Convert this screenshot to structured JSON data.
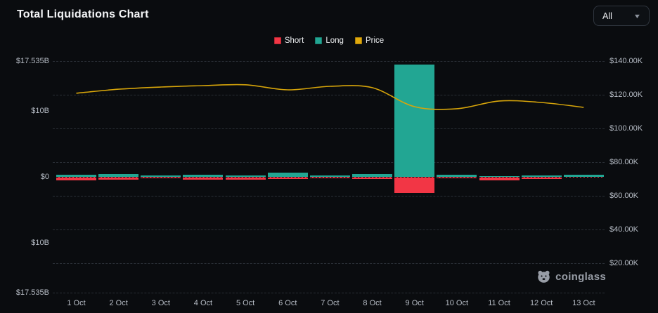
{
  "header": {
    "title": "Total Liquidations Chart",
    "range_selector": {
      "value": "All"
    }
  },
  "legend": [
    {
      "label": "Short",
      "color": "#f23645"
    },
    {
      "label": "Long",
      "color": "#22a693"
    },
    {
      "label": "Price",
      "color": "#e0a90c"
    }
  ],
  "watermark": {
    "label": "coinglass"
  },
  "chart_data": {
    "type": "bar",
    "subtype": "stacked-diverging bars with overlay line",
    "title": "Total Liquidations Chart",
    "categories": [
      "1 Oct",
      "2 Oct",
      "3 Oct",
      "4 Oct",
      "5 Oct",
      "6 Oct",
      "7 Oct",
      "8 Oct",
      "9 Oct",
      "10 Oct",
      "11 Oct",
      "12 Oct",
      "13 Oct"
    ],
    "series": [
      {
        "name": "Short",
        "type": "bar",
        "axis": "left",
        "direction": "down",
        "unit": "$B",
        "color": "#f23645",
        "values": [
          0.53,
          0.42,
          0.21,
          0.42,
          0.42,
          0.32,
          0.21,
          0.32,
          2.4,
          0.21,
          0.53,
          0.32,
          0.11
        ]
      },
      {
        "name": "Long",
        "type": "bar",
        "axis": "left",
        "direction": "up",
        "unit": "$B",
        "color": "#22a693",
        "values": [
          0.32,
          0.45,
          0.21,
          0.32,
          0.21,
          0.64,
          0.21,
          0.42,
          17.0,
          0.32,
          0.11,
          0.21,
          0.32
        ]
      },
      {
        "name": "Price",
        "type": "line",
        "axis": "right",
        "unit": "$K",
        "color": "#d7a50a",
        "values": [
          120.9,
          123.3,
          124.6,
          125.4,
          125.9,
          122.9,
          125.0,
          124.2,
          112.9,
          111.7,
          116.3,
          115.4,
          112.5
        ]
      }
    ],
    "axes": {
      "left": {
        "unit": "$B",
        "range": [
          -17.535,
          17.535
        ],
        "ticks": [
          {
            "value": 17.535,
            "label": "$17.535B"
          },
          {
            "value": 10,
            "label": "$10B"
          },
          {
            "value": 0,
            "label": "$0"
          },
          {
            "value": -10,
            "label": "$10B"
          },
          {
            "value": -17.535,
            "label": "$17.535B"
          }
        ]
      },
      "right": {
        "unit": "$K",
        "range": [
          20,
          140
        ],
        "ticks": [
          {
            "value": 140,
            "label": "$140.00K"
          },
          {
            "value": 120,
            "label": "$120.00K"
          },
          {
            "value": 100,
            "label": "$100.00K"
          },
          {
            "value": 80,
            "label": "$80.00K"
          },
          {
            "value": 60,
            "label": "$60.00K"
          },
          {
            "value": 40,
            "label": "$40.00K"
          },
          {
            "value": 20,
            "label": "$20.00K"
          }
        ]
      }
    },
    "grid": "horizontal dashed",
    "legend_position": "top-center"
  }
}
